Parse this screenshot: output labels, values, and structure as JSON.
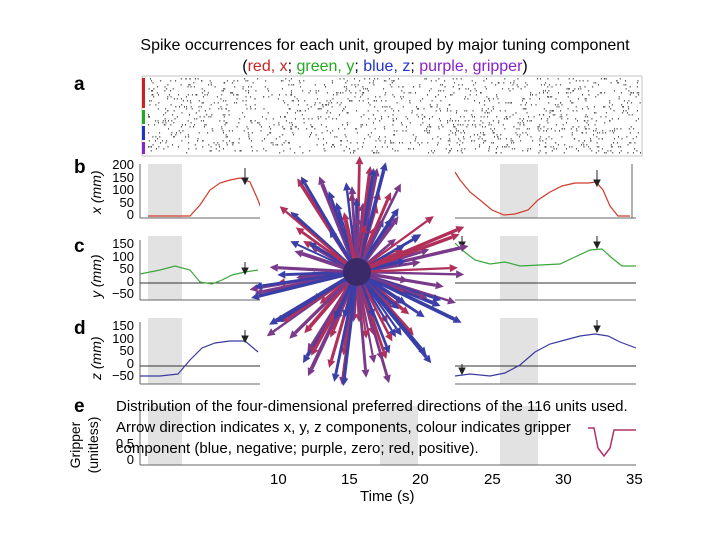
{
  "title": {
    "line1": "Spike occurrences for each unit, grouped by major tuning component",
    "open": "(",
    "red": "red, x",
    "sep1": "; ",
    "green": "green, y",
    "sep2": "; ",
    "blue": "blue, z",
    "sep3": "; ",
    "purple": "purple, gripper",
    "close": ")"
  },
  "panels": {
    "a": "a",
    "b": "b",
    "c": "c",
    "d": "d",
    "e": "e"
  },
  "axes": {
    "b_ylabel": "x (mm)",
    "c_ylabel": "y (mm)",
    "d_ylabel": "z (mm)",
    "e_ylabel": "Gripper (unitless)",
    "b_ticks": [
      "200",
      "150",
      "100",
      "50",
      "0"
    ],
    "c_ticks": [
      "150",
      "100",
      "50",
      "0",
      "−50"
    ],
    "d_ticks": [
      "150",
      "100",
      "50",
      "0",
      "−50"
    ],
    "e_ticks": [
      "0.5",
      "0"
    ],
    "x_title": "Time (s)",
    "x_ticks": [
      "10",
      "15",
      "20",
      "25",
      "30",
      "35"
    ]
  },
  "caption": "Distribution of the four-dimensional preferred directions of the 116 units used. Arrow direction indicates x, y, z components, colour indicates gripper component (blue, negative; purple, zero; red, positive).",
  "colors": {
    "x_trace": "#d23a2a",
    "y_trace": "#3aa83a",
    "z_trace": "#3a3aa0",
    "gripper_trace": "#b0306e",
    "shade": "#e2e2e2",
    "arrow_neg": "#3a3fa8",
    "arrow_zero": "#7a3a8a",
    "arrow_pos": "#b0305a"
  }
}
